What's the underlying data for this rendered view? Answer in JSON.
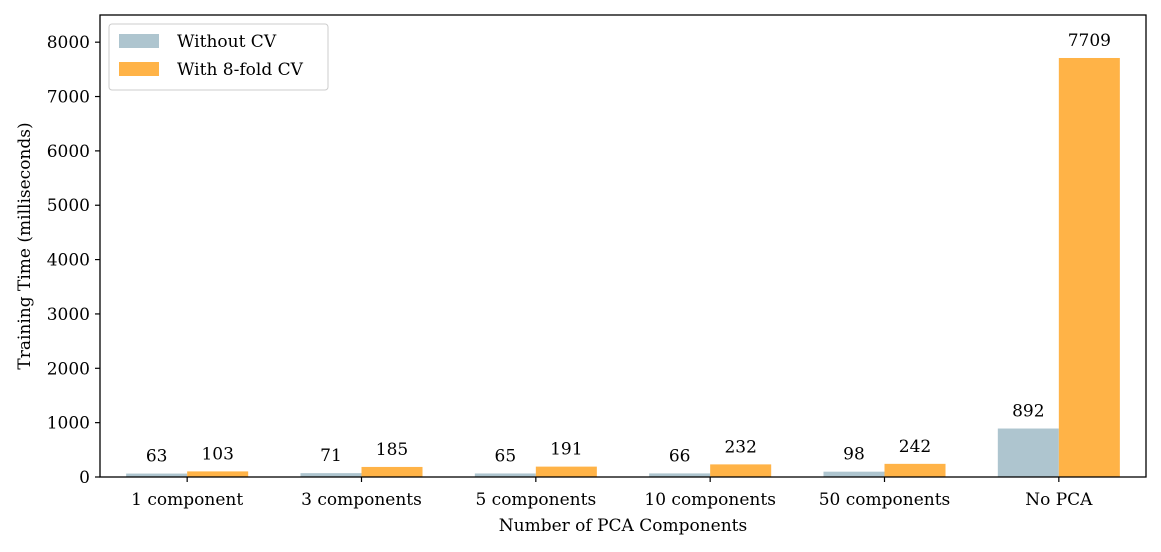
{
  "chart_data": {
    "type": "bar",
    "categories": [
      "1 component",
      "3 components",
      "5 components",
      "10 components",
      "50 components",
      "No PCA"
    ],
    "series": [
      {
        "name": "Without CV",
        "values": [
          63,
          71,
          65,
          66,
          98,
          892
        ],
        "color": "#aec5cf"
      },
      {
        "name": "With 8-fold CV",
        "values": [
          103,
          185,
          191,
          232,
          242,
          7709
        ],
        "color": "#ffb347"
      }
    ],
    "xlabel": "Number of PCA Components",
    "ylabel": "Training Time (milliseconds)",
    "ylim": [
      0,
      8500
    ],
    "yticks": [
      0,
      1000,
      2000,
      3000,
      4000,
      5000,
      6000,
      7000,
      8000
    ],
    "grid": false,
    "legend": "top-left",
    "data_labels": true
  }
}
